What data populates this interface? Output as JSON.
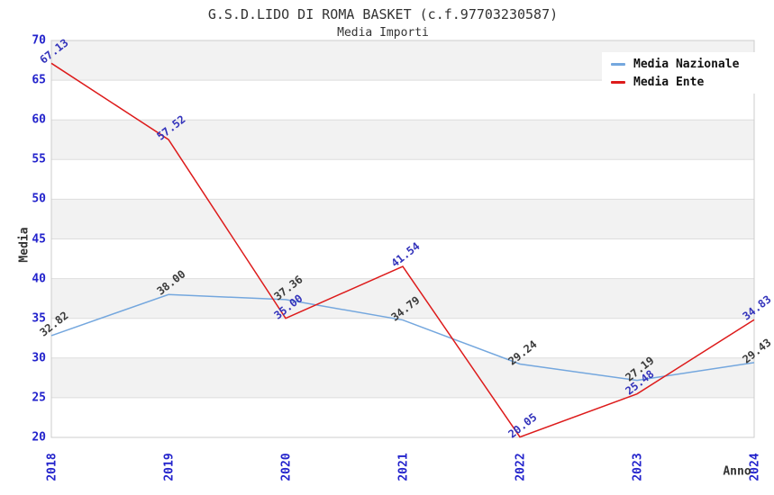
{
  "chart_data": {
    "type": "line",
    "title": "G.S.D.LIDO DI ROMA BASKET (c.f.97703230587)",
    "subtitle": "Media Importi",
    "xlabel": "Anno",
    "ylabel": "Media",
    "categories": [
      "2018",
      "2019",
      "2020",
      "2021",
      "2022",
      "2023",
      "2024"
    ],
    "series": [
      {
        "name": "Media Nazionale",
        "color": "#74a7de",
        "label_color": "#3a3a3a",
        "values": [
          32.82,
          38.0,
          37.36,
          34.79,
          29.24,
          27.19,
          29.43
        ]
      },
      {
        "name": "Media Ente",
        "color": "#dd1b1b",
        "label_color": "#3333bb",
        "values": [
          67.13,
          57.52,
          35.0,
          41.54,
          20.05,
          25.48,
          34.83
        ]
      }
    ],
    "ylim": [
      20,
      70
    ],
    "ytick_step": 5,
    "grid": true,
    "band_fill": "alternating",
    "legend_position": "top-right",
    "colors": {
      "tick_label": "#2323cc",
      "band": "#f2f2f2",
      "grid": "#dddddd",
      "plot_border": "#cccccc",
      "title_text": "#333333"
    }
  }
}
